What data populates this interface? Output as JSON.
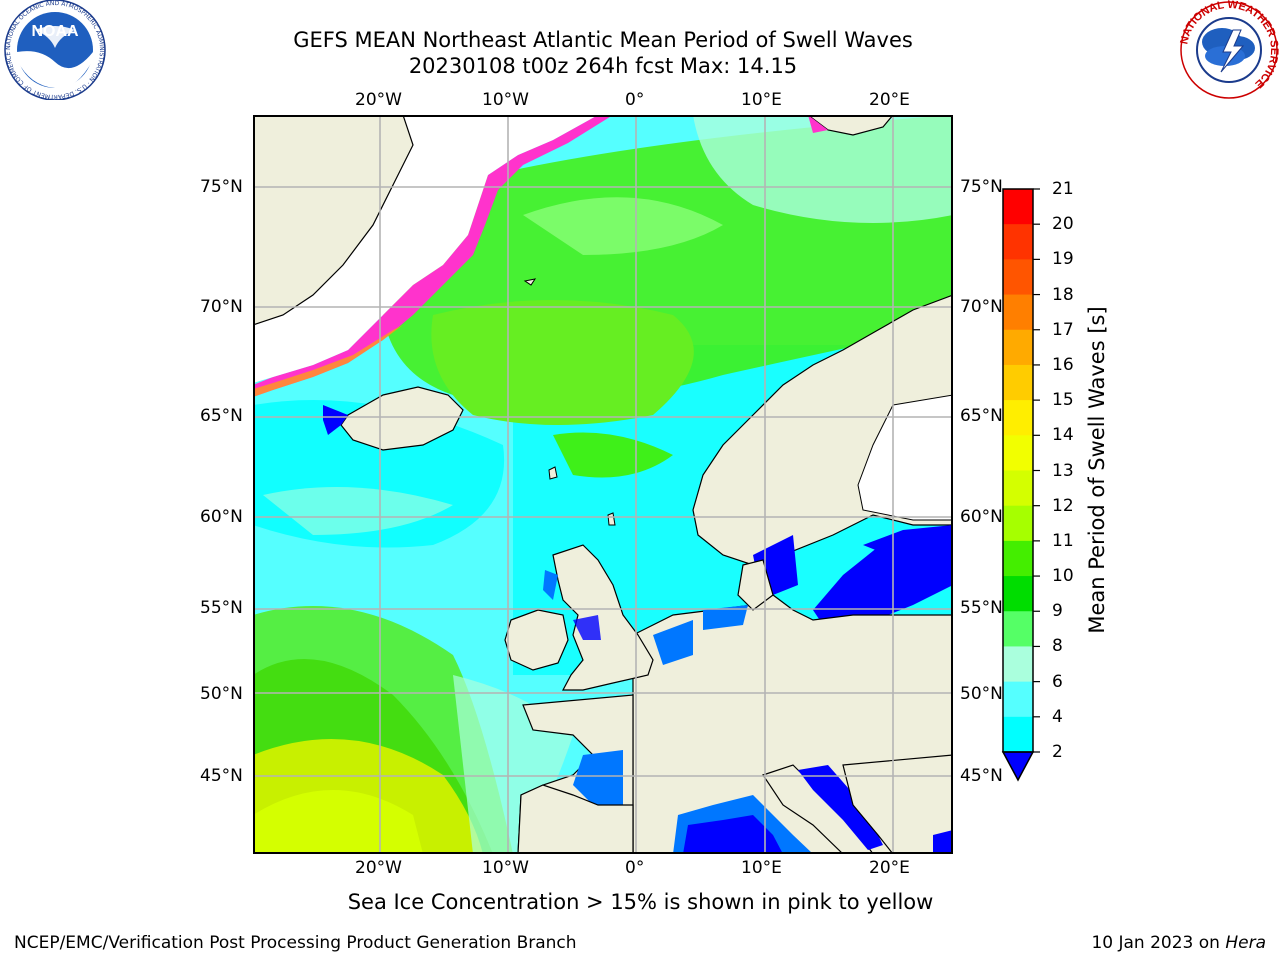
{
  "header": {
    "title_line1": "GEFS MEAN Northeast Atlantic Mean Period of Swell Waves",
    "title_line2": "20230108 t00z 264h fcst   Max: 14.15"
  },
  "map": {
    "lon_labels": [
      "20°W",
      "10°W",
      "0°",
      "10°E",
      "20°E"
    ],
    "lat_labels": [
      "75°N",
      "70°N",
      "65°N",
      "60°N",
      "55°N",
      "50°N",
      "45°N"
    ],
    "colors": {
      "land": "#efefdc",
      "frame": "#000000",
      "grid": "#b4b4b4",
      "sea_ice_pink": "#ff33cc"
    }
  },
  "colorbar": {
    "label": "Mean Period of Swell Waves [s]",
    "ticks": [
      "21",
      "20",
      "19",
      "18",
      "17",
      "16",
      "15",
      "14",
      "13",
      "12",
      "11",
      "10",
      "9",
      "8",
      "6",
      "4",
      "2"
    ],
    "colors": [
      "#ff0000",
      "#ff3300",
      "#ff5500",
      "#ff7f00",
      "#ffaa00",
      "#ffcc00",
      "#ffee00",
      "#f2ff00",
      "#d4ff00",
      "#a6ff00",
      "#44ee00",
      "#00dd00",
      "#55ff66",
      "#aaffdd",
      "#55ffff",
      "#00ffff",
      "#0077ff",
      "#0000ff"
    ]
  },
  "note": "Sea Ice Concentration > 15% is shown in pink to yellow",
  "footer": {
    "left": "NCEP/EMC/Verification Post Processing Product Generation Branch",
    "right_date": "10 Jan 2023 on ",
    "right_machine": "Hera"
  },
  "logos": {
    "noaa_text": "NOAA",
    "noaa_ring": "NATIONAL OCEANIC AND ATMOSPHERIC ADMINISTRATION · U.S. DEPARTMENT OF COMMERCE",
    "nws_ring": "NATIONAL WEATHER SERVICE"
  }
}
